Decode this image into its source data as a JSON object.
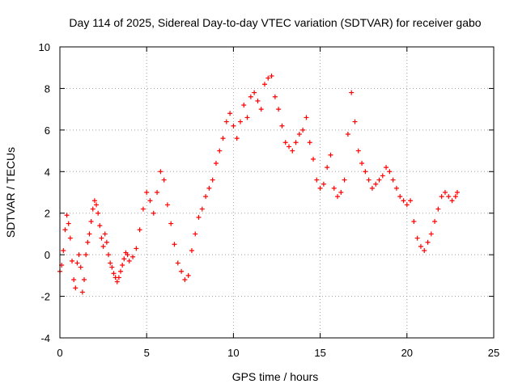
{
  "chart_data": {
    "type": "scatter",
    "title": "Day 114 of 2025, Sidereal Day-to-day VTEC variation (SDTVAR) for receiver gabo",
    "xlabel": "GPS time / hours",
    "ylabel": "SDTVAR / TECUs",
    "xlim": [
      0,
      25
    ],
    "ylim": [
      -4,
      10
    ],
    "xticks": [
      0,
      5,
      10,
      15,
      20,
      25
    ],
    "yticks": [
      -4,
      -2,
      0,
      2,
      4,
      6,
      8,
      10
    ],
    "xtick_labels": [
      "0",
      "5",
      "10",
      "15",
      "20",
      "25"
    ],
    "ytick_labels": [
      "-4",
      "-2",
      "0",
      "2",
      "4",
      "6",
      "8",
      "10"
    ],
    "grid": true,
    "marker": "+",
    "color": "#ff0000",
    "series": [
      {
        "name": "SDTVAR",
        "x": [
          0.0,
          0.1,
          0.2,
          0.3,
          0.4,
          0.5,
          0.6,
          0.7,
          0.8,
          0.9,
          1.0,
          1.1,
          1.2,
          1.3,
          1.4,
          1.5,
          1.6,
          1.7,
          1.8,
          1.9,
          2.0,
          2.1,
          2.2,
          2.3,
          2.4,
          2.5,
          2.6,
          2.7,
          2.8,
          2.9,
          3.0,
          3.1,
          3.2,
          3.3,
          3.4,
          3.5,
          3.6,
          3.7,
          3.8,
          3.9,
          4.0,
          4.2,
          4.4,
          4.6,
          4.8,
          5.0,
          5.2,
          5.4,
          5.6,
          5.8,
          6.0,
          6.2,
          6.4,
          6.6,
          6.8,
          7.0,
          7.2,
          7.4,
          7.6,
          7.8,
          8.0,
          8.2,
          8.4,
          8.6,
          8.8,
          9.0,
          9.2,
          9.4,
          9.6,
          9.8,
          10.0,
          10.2,
          10.4,
          10.6,
          10.8,
          11.0,
          11.2,
          11.4,
          11.6,
          11.8,
          12.0,
          12.2,
          12.4,
          12.6,
          12.8,
          13.0,
          13.2,
          13.4,
          13.6,
          13.8,
          14.0,
          14.2,
          14.4,
          14.6,
          14.8,
          15.0,
          15.2,
          15.4,
          15.6,
          15.8,
          16.0,
          16.2,
          16.4,
          16.6,
          16.8,
          17.0,
          17.2,
          17.4,
          17.6,
          17.8,
          18.0,
          18.2,
          18.4,
          18.6,
          18.8,
          19.0,
          19.2,
          19.4,
          19.6,
          19.8,
          20.0,
          20.2,
          20.4,
          20.6,
          20.8,
          21.0,
          21.2,
          21.4,
          21.6,
          21.8,
          22.0,
          22.2,
          22.4,
          22.6,
          22.8,
          22.9
        ],
        "y": [
          -0.8,
          -0.5,
          0.2,
          1.2,
          1.9,
          1.5,
          0.8,
          -0.3,
          -1.2,
          -1.6,
          -0.4,
          0.0,
          -0.6,
          -1.8,
          -1.2,
          0.0,
          0.6,
          1.0,
          1.6,
          2.2,
          2.6,
          2.4,
          2.0,
          1.4,
          0.8,
          0.4,
          1.0,
          0.6,
          0.0,
          -0.4,
          -0.6,
          -0.9,
          -1.1,
          -1.3,
          -1.1,
          -0.8,
          -0.5,
          -0.2,
          0.1,
          0.0,
          -0.3,
          -0.1,
          0.3,
          1.2,
          2.2,
          3.0,
          2.6,
          2.0,
          3.0,
          4.0,
          3.6,
          2.4,
          1.5,
          0.5,
          -0.4,
          -0.8,
          -1.2,
          -1.0,
          0.2,
          1.0,
          1.8,
          2.2,
          2.8,
          3.2,
          3.6,
          4.4,
          5.0,
          5.6,
          6.4,
          6.8,
          6.2,
          5.6,
          6.4,
          7.2,
          6.6,
          7.6,
          7.8,
          7.4,
          7.0,
          8.2,
          8.5,
          8.6,
          7.6,
          7.0,
          6.2,
          5.4,
          5.2,
          5.0,
          5.4,
          5.8,
          6.0,
          6.6,
          5.4,
          4.6,
          3.6,
          3.2,
          3.4,
          4.2,
          4.8,
          3.2,
          2.8,
          3.0,
          3.6,
          5.8,
          7.8,
          6.4,
          5.0,
          4.4,
          4.0,
          3.6,
          3.2,
          3.4,
          3.6,
          3.8,
          4.2,
          4.0,
          3.6,
          3.2,
          2.8,
          2.6,
          2.4,
          2.6,
          1.6,
          0.8,
          0.4,
          0.2,
          0.6,
          1.0,
          1.6,
          2.2,
          2.8,
          3.0,
          2.8,
          2.6,
          2.8,
          3.0
        ]
      }
    ]
  }
}
